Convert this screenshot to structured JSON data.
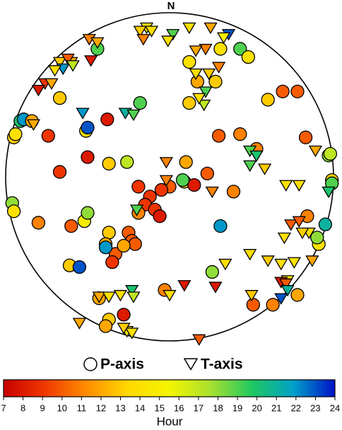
{
  "chart_data": {
    "type": "scatter",
    "north_label": "N",
    "xlim": [
      -100,
      100
    ],
    "ylim": [
      -100,
      100
    ],
    "series": [
      {
        "name": "P-axis",
        "marker": "circle",
        "x": [
          -44,
          31,
          43,
          48,
          12,
          17,
          12,
          28,
          -18,
          69,
          78,
          60,
          -67,
          -91,
          -89,
          -95,
          -94,
          -84,
          -51,
          -50,
          -38,
          -74,
          -50,
          -37,
          -26,
          30,
          43,
          53,
          83,
          97,
          98,
          -67,
          10,
          23,
          9,
          15,
          8,
          39,
          0,
          -5,
          -19,
          -12,
          -15,
          -9,
          -19,
          -6,
          -96,
          -95,
          -80,
          -60,
          -52,
          -50,
          -25,
          -23,
          -37,
          -39,
          -33,
          -35,
          -39,
          -21,
          -28,
          -61,
          -55,
          31,
          84,
          99,
          99,
          95,
          91,
          26,
          -3,
          -43,
          -28,
          -37,
          -39,
          63,
          51,
          78,
          90
        ],
        "y": [
          78,
          78,
          78,
          73,
          70,
          58,
          45,
          58,
          45,
          52,
          52,
          47,
          48,
          34,
          35,
          24,
          26,
          34,
          28,
          30,
          35,
          25,
          12,
          8,
          9,
          25,
          26,
          17,
          24,
          13,
          14,
          3,
          9,
          2,
          -3,
          -5,
          -2,
          -9,
          -6,
          -8,
          -6,
          -12,
          -17,
          -20,
          -22,
          -24,
          -16,
          -21,
          -28,
          -30,
          -27,
          -22,
          -34,
          -39,
          -34,
          -41,
          -47,
          -52,
          -43,
          -41,
          -42,
          -54,
          -55,
          -30,
          -24,
          -2,
          -4,
          -29,
          -41,
          -58,
          -69,
          -74,
          -84,
          -87,
          -91,
          -78,
          -78,
          -72,
          -37
        ],
        "values": [
          19,
          14,
          19,
          14,
          14,
          12,
          13,
          13,
          19,
          10,
          10,
          13,
          13,
          20,
          22,
          13,
          14,
          12,
          14,
          23,
          8,
          9,
          8,
          13,
          17,
          10,
          11,
          11,
          10,
          18,
          17,
          9,
          12,
          10,
          13,
          8,
          19,
          11,
          10,
          9,
          9,
          9,
          9,
          9,
          11,
          8,
          18,
          14,
          11,
          10,
          15,
          18,
          10,
          10,
          13,
          12,
          10,
          9,
          22,
          10,
          12,
          13,
          23,
          22,
          11,
          13,
          19,
          21,
          14,
          18,
          11,
          12,
          8,
          13,
          12,
          11,
          10,
          12,
          18
        ]
      },
      {
        "name": "T-axis",
        "marker": "triangle",
        "x": [
          -14,
          -18,
          -11,
          2,
          12,
          25,
          36,
          -16,
          -1,
          33,
          -49,
          22,
          16,
          -44,
          -67,
          -65,
          -70,
          -60,
          -62,
          -59,
          -48,
          -76,
          -80,
          -72,
          30,
          16,
          24,
          22,
          21,
          18,
          -53,
          -27,
          -22,
          -83,
          49,
          53,
          58,
          49,
          89,
          -2,
          -2,
          71,
          79,
          97,
          -20,
          26,
          74,
          79,
          70,
          85,
          81,
          34,
          49,
          60,
          68,
          76,
          87,
          72,
          68,
          71,
          72,
          68,
          -43,
          -37,
          -30,
          -23,
          -22,
          9,
          28,
          0,
          -26,
          -23,
          -28,
          18,
          50,
          -55
        ],
        "y": [
          91,
          89,
          89,
          87,
          91,
          91,
          87,
          84,
          83,
          85,
          84,
          78,
          77,
          82,
          70,
          66,
          65,
          70,
          72,
          68,
          71,
          57,
          53,
          57,
          67,
          63,
          63,
          52,
          44,
          48,
          39,
          39,
          38,
          32,
          16,
          13,
          5,
          7,
          16,
          9,
          -2,
          -5,
          -5,
          -9,
          -20,
          -9,
          -29,
          -27,
          -37,
          -34,
          -34,
          -53,
          -47,
          -51,
          -53,
          -52,
          -51,
          -63,
          -64,
          -65,
          -69,
          -74,
          -73,
          -73,
          -72,
          -69,
          -73,
          -66,
          -67,
          -72,
          -94,
          -95,
          -92,
          -99,
          -72,
          -89
        ],
        "values": [
          14,
          13,
          14,
          19,
          14,
          12,
          23,
          11,
          14,
          15,
          11,
          11,
          12,
          12,
          13,
          22,
          14,
          12,
          10,
          17,
          8,
          9,
          8,
          12,
          11,
          14,
          13,
          19,
          17,
          14,
          22,
          21,
          19,
          12,
          19,
          20,
          13,
          19,
          12,
          11,
          11,
          14,
          14,
          20,
          19,
          11,
          10,
          10,
          14,
          14,
          13,
          14,
          14,
          13,
          14,
          14,
          12,
          14,
          8,
          10,
          21,
          23,
          12,
          14,
          14,
          20,
          17,
          8,
          8,
          14,
          15,
          14,
          13,
          10,
          13,
          12
        ]
      }
    ],
    "colorbar": {
      "label": "Hour",
      "lim": [
        7,
        24
      ],
      "ticks": [
        7,
        8,
        9,
        10,
        11,
        12,
        13,
        14,
        15,
        16,
        17,
        18,
        19,
        20,
        21,
        22,
        23,
        24
      ],
      "colors": [
        "#c80000",
        "#f03800",
        "#ff8c00",
        "#ffd800",
        "#f4f400",
        "#a8e030",
        "#20c860",
        "#00a0c8",
        "#0010c8"
      ]
    }
  }
}
